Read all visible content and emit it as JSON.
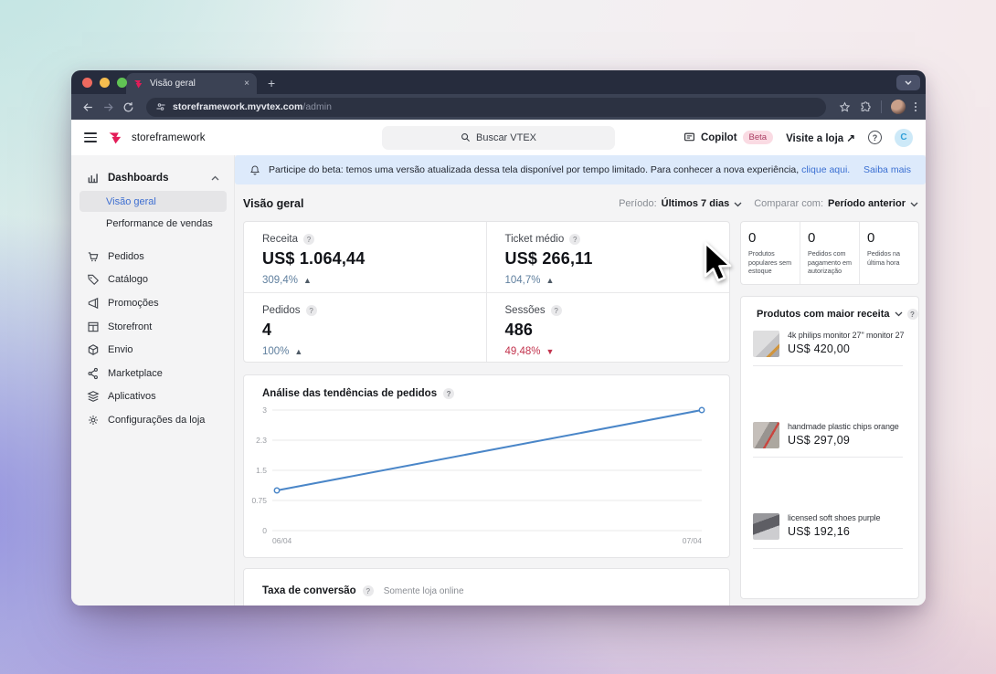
{
  "browser": {
    "tab_title": "Visão geral",
    "url_main": "storeframework.myvtex.com",
    "url_path": "/admin",
    "new_tab_label": "+",
    "close_tab_label": "×"
  },
  "header": {
    "store_name": "storeframework",
    "search_placeholder": "Buscar VTEX",
    "copilot_label": "Copilot",
    "beta_label": "Beta",
    "visit_store_label": "Visite a loja ↗",
    "avatar_initial": "C"
  },
  "banner": {
    "text": "Participe do beta: temos uma versão atualizada dessa tela disponível por tempo limitado. Para conhecer a nova experiência, ",
    "link": "clique aqui.",
    "action": "Saiba mais"
  },
  "sidebar": {
    "section": {
      "label": "Dashboards"
    },
    "subitems": [
      {
        "label": "Visão geral",
        "active": true
      },
      {
        "label": "Performance de vendas",
        "active": false
      }
    ],
    "items": [
      {
        "label": "Pedidos"
      },
      {
        "label": "Catálogo"
      },
      {
        "label": "Promoções"
      },
      {
        "label": "Storefront"
      },
      {
        "label": "Envio"
      },
      {
        "label": "Marketplace"
      },
      {
        "label": "Aplicativos"
      },
      {
        "label": "Configurações da loja"
      }
    ]
  },
  "page": {
    "title": "Visão geral",
    "period_label": "Período:",
    "period_value": "Últimos 7 dias",
    "compare_label": "Comparar com:",
    "compare_value": "Período anterior"
  },
  "stats": [
    {
      "label": "Receita",
      "value": "US$ 1.064,44",
      "delta": "309,4%",
      "direction": "up"
    },
    {
      "label": "Ticket médio",
      "value": "US$ 266,11",
      "delta": "104,7%",
      "direction": "up"
    },
    {
      "label": "Pedidos",
      "value": "4",
      "delta": "100%",
      "direction": "up"
    },
    {
      "label": "Sessões",
      "value": "486",
      "delta": "49,48%",
      "direction": "down"
    }
  ],
  "zeros": [
    {
      "value": "0",
      "label": "Produtos populares sem estoque"
    },
    {
      "value": "0",
      "label": "Pedidos com pagamento em autorização"
    },
    {
      "value": "0",
      "label": "Pedidos na última hora"
    }
  ],
  "products_card": {
    "title": "Produtos com maior receita",
    "items": [
      {
        "name": "4k philips monitor 27\" monitor 27",
        "price": "US$ 420,00"
      },
      {
        "name": "handmade plastic chips orange",
        "price": "US$ 297,09"
      },
      {
        "name": "licensed soft shoes purple",
        "price": "US$ 192,16"
      }
    ]
  },
  "chart_data": {
    "type": "line",
    "title": "Análise das tendências de pedidos",
    "x": [
      "06/04",
      "07/04"
    ],
    "values": [
      1,
      3
    ],
    "y_ticks": [
      "3",
      "2.3",
      "1.5",
      "0.75",
      "0"
    ],
    "ylim": [
      0,
      3
    ],
    "line_color": "#4a86c8",
    "grid": true
  },
  "taxa_card": {
    "title": "Taxa de conversão",
    "subtitle": "Somente loja online"
  }
}
